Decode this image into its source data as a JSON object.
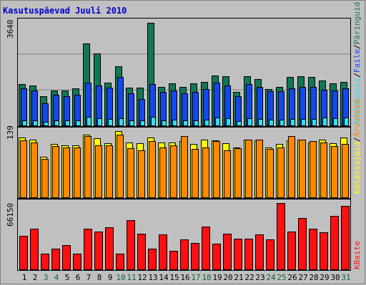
{
  "chart_data": {
    "type": "bar",
    "title": "Kasutuspäevad Juuli 2010",
    "days": [
      "1",
      "2",
      "3",
      "4",
      "5",
      "6",
      "7",
      "8",
      "9",
      "10",
      "11",
      "12",
      "13",
      "14",
      "15",
      "16",
      "17",
      "18",
      "19",
      "20",
      "21",
      "22",
      "23",
      "24",
      "25",
      "26",
      "27",
      "28",
      "29",
      "30",
      "31"
    ],
    "weekend_days": [
      "3",
      "4",
      "10",
      "11",
      "17",
      "18",
      "24",
      "25",
      "31"
    ],
    "panels": [
      {
        "id": "top",
        "max_label": "3640",
        "ymax": 3640,
        "series": [
          {
            "name": "Päringuid",
            "color": "#117755",
            "values": [
              1400,
              1350,
              1000,
              1200,
              1180,
              1250,
              2780,
              2460,
              1450,
              2020,
              1280,
              1280,
              3500,
              1300,
              1420,
              1300,
              1440,
              1480,
              1700,
              1680,
              1150,
              1680,
              1570,
              1240,
              1300,
              1650,
              1680,
              1640,
              1520,
              1440,
              1480
            ]
          },
          {
            "name": "Faile",
            "color": "#1448ee",
            "values": [
              1270,
              1180,
              760,
              1040,
              990,
              1050,
              1450,
              1370,
              1280,
              1650,
              1080,
              900,
              1400,
              1150,
              1200,
              1090,
              1130,
              1230,
              1450,
              1370,
              990,
              1410,
              1310,
              1160,
              1160,
              1250,
              1300,
              1300,
              1210,
              1180,
              1250
            ]
          },
          {
            "name": "Pöördumisi",
            "color": "#30e0f0",
            "values": [
              180,
              160,
              130,
              160,
              160,
              160,
              280,
              250,
              230,
              250,
              170,
              170,
              300,
              180,
              200,
              170,
              180,
              200,
              260,
              250,
              150,
              240,
              210,
              190,
              190,
              230,
              220,
              220,
              270,
              250,
              260
            ]
          }
        ]
      },
      {
        "id": "mid",
        "max_label": "139",
        "ymax": 139,
        "series": [
          {
            "name": "Külastajaid",
            "color": "#ffff00",
            "values": [
              122,
              118,
              82,
              108,
              105,
              105,
              128,
              120,
              110,
              135,
              112,
              110,
              122,
              112,
              112,
              115,
              108,
              118,
              116,
              110,
              102,
              118,
              116,
              102,
              108,
              116,
              118,
              112,
              118,
              110,
              122
            ]
          },
          {
            "name": "Arvuteid",
            "color": "#ff8800",
            "values": [
              116,
              112,
              78,
              104,
              102,
              102,
              124,
              106,
              106,
              127,
              100,
              96,
              114,
              102,
              106,
              124,
              98,
              102,
              114,
              96,
              100,
              118,
              118,
              98,
              102,
              124,
              118,
              114,
              112,
              104,
              108
            ]
          }
        ]
      },
      {
        "id": "bottom",
        "max_label": "66150",
        "ymax": 66150,
        "series": [
          {
            "name": "KBaite",
            "color": "#ff1010",
            "values": [
              33000,
              40000,
              15000,
              20000,
              24000,
              15000,
              40000,
              37000,
              41000,
              15000,
              48000,
              35000,
              20000,
              34000,
              18000,
              29000,
              26000,
              42000,
              25000,
              35000,
              30000,
              30000,
              34000,
              29000,
              65000,
              37000,
              50000,
              40000,
              36000,
              52000,
              62000
            ]
          }
        ]
      }
    ]
  },
  "legend": {
    "top": [
      "Pöördumisi",
      "Faile",
      "Päringuid"
    ],
    "mid": [
      "Külastajaid",
      "Arvuteid"
    ],
    "bottom": [
      "KBaite"
    ],
    "separator": "/"
  },
  "colors": {
    "background": "#c0c0c0",
    "title": "#0000cc",
    "weekday_label": "#000000",
    "weekend_label": "#116633",
    "gridline": "#808080"
  }
}
